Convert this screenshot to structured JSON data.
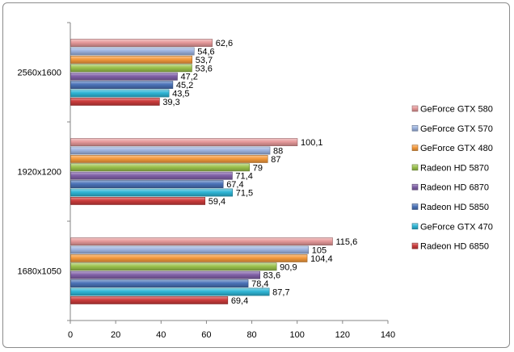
{
  "chart_data": {
    "type": "bar",
    "orientation": "horizontal",
    "categories": [
      "2560x1600",
      "1920x1200",
      "1680x1050"
    ],
    "series": [
      {
        "name": "GeForce GTX 580",
        "color": "#e6999a",
        "values": [
          62.6,
          100.1,
          115.6
        ],
        "labels": [
          "62,6",
          "100,1",
          "115,6"
        ]
      },
      {
        "name": "GeForce GTX 570",
        "color": "#9db4e0",
        "values": [
          54.6,
          88,
          105
        ],
        "labels": [
          "54,6",
          "88",
          "105"
        ]
      },
      {
        "name": "GeForce GTX 480",
        "color": "#f59a3c",
        "values": [
          53.7,
          87,
          104.4
        ],
        "labels": [
          "53,7",
          "87",
          "104,4"
        ]
      },
      {
        "name": "Radeon HD 5870",
        "color": "#9bc24c",
        "values": [
          53.6,
          79,
          90.9
        ],
        "labels": [
          "53,6",
          "79",
          "90,9"
        ]
      },
      {
        "name": "Radeon HD 6870",
        "color": "#8161a8",
        "values": [
          47.2,
          71.4,
          83.6
        ],
        "labels": [
          "47,2",
          "71,4",
          "83,6"
        ]
      },
      {
        "name": "Radeon HD 5850",
        "color": "#4b73b8",
        "values": [
          45.2,
          67.4,
          78.4
        ],
        "labels": [
          "45,2",
          "67,4",
          "78,4"
        ]
      },
      {
        "name": "GeForce GTX 470",
        "color": "#2fb6d6",
        "values": [
          43.5,
          71.5,
          87.7
        ],
        "labels": [
          "43,5",
          "71,5",
          "87,7"
        ]
      },
      {
        "name": "Radeon HD 6850",
        "color": "#cc3c3c",
        "values": [
          39.3,
          59.4,
          69.4
        ],
        "labels": [
          "39,3",
          "59,4",
          "69,4"
        ]
      }
    ],
    "xlim": [
      0,
      140
    ],
    "xticks": [
      "0",
      "20",
      "40",
      "60",
      "80",
      "100",
      "120",
      "140"
    ],
    "title": "",
    "xlabel": "",
    "ylabel": "",
    "grid": false,
    "legend_position": "right"
  }
}
